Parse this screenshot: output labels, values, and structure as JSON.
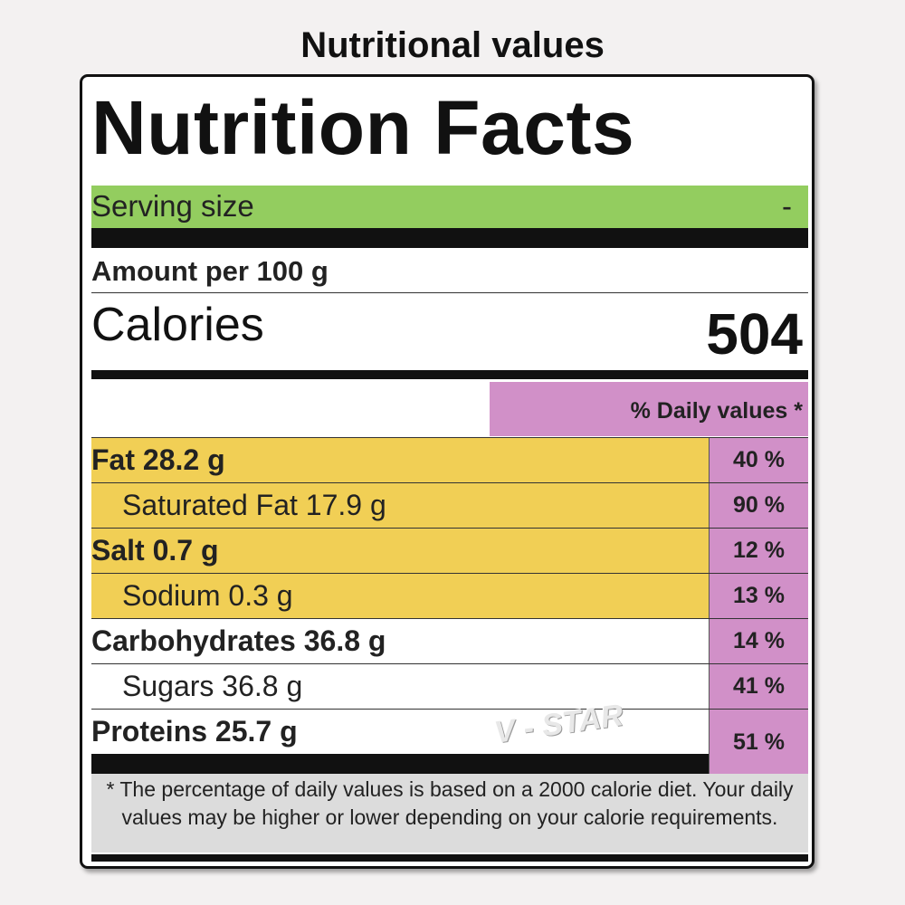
{
  "page_title": "Nutritional values",
  "label": {
    "title": "Nutrition Facts",
    "serving": {
      "label": "Serving size",
      "value": "-"
    },
    "amount_per": "Amount per 100 g",
    "calories": {
      "label": "Calories",
      "value": "504"
    },
    "daily_values_header": "% Daily values *",
    "rows": [
      {
        "name": "Fat 28.2 g",
        "percent": "40 %",
        "bold": true,
        "indent": false,
        "highlight": "#f1cf55"
      },
      {
        "name": "Saturated Fat 17.9 g",
        "percent": "90 %",
        "bold": false,
        "indent": true,
        "highlight": "#f1cf55"
      },
      {
        "name": "Salt 0.7 g",
        "percent": "12 %",
        "bold": true,
        "indent": false,
        "highlight": "#f1cf55"
      },
      {
        "name": "Sodium 0.3 g",
        "percent": "13 %",
        "bold": false,
        "indent": true,
        "highlight": "#f1cf55"
      },
      {
        "name": "Carbohydrates 36.8 g",
        "percent": "14 %",
        "bold": true,
        "indent": false,
        "highlight": ""
      },
      {
        "name": "Sugars 36.8 g",
        "percent": "41 %",
        "bold": false,
        "indent": true,
        "highlight": ""
      },
      {
        "name": "Proteins 25.7 g",
        "percent": "51 %",
        "bold": true,
        "indent": false,
        "highlight": ""
      }
    ],
    "footnote": "* The percentage of daily values is based on a 2000 calorie diet. Your daily values may be higher or lower depending on your calorie requirements.",
    "watermark": "V - STAR"
  },
  "colors": {
    "serving_bg": "#93cd5f",
    "daily_value_bg": "#d190c8",
    "highlight_yellow": "#f1cf55",
    "footnote_bg": "#dcdcdc"
  }
}
